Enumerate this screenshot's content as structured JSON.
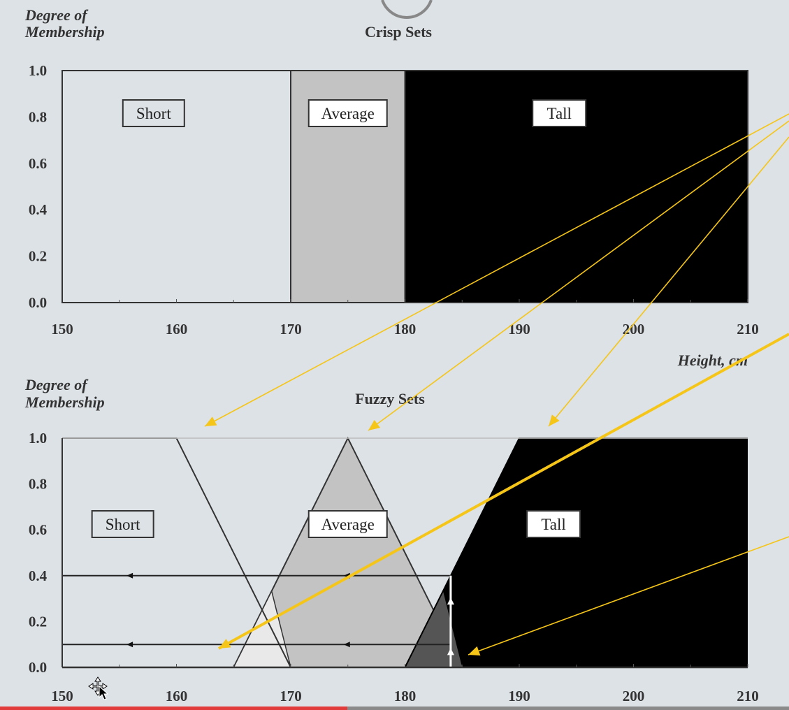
{
  "video": {
    "progress": 0.44
  },
  "colors": {
    "background": "#dde2e6",
    "short": "#dde2e6",
    "average": "#c3c3c3",
    "tall": "#000000",
    "overlap": "#e9e9e9",
    "overlap_dark": "#555555",
    "arrow": "#f5c518",
    "frame": "#333333"
  },
  "chart_data": [
    {
      "type": "area",
      "title": "Crisp Sets",
      "ylabel_line1": "Degree of",
      "ylabel_line2": "Membership",
      "xlabel": "Height, cm",
      "xlim": [
        150,
        210
      ],
      "ylim": [
        0,
        1
      ],
      "x_ticks": [
        "150",
        "160",
        "170",
        "180",
        "190",
        "200",
        "210"
      ],
      "y_ticks": [
        "0.0",
        "0.2",
        "0.4",
        "0.6",
        "0.8",
        "1.0"
      ],
      "series": [
        {
          "name": "Short",
          "points": [
            [
              150,
              1
            ],
            [
              170,
              1
            ]
          ]
        },
        {
          "name": "Average",
          "points": [
            [
              170,
              1
            ],
            [
              180,
              1
            ]
          ]
        },
        {
          "name": "Tall",
          "points": [
            [
              180,
              1
            ],
            [
              210,
              1
            ]
          ]
        }
      ]
    },
    {
      "type": "area",
      "title": "Fuzzy Sets",
      "ylabel_line1": "Degree of",
      "ylabel_line2": "Membership",
      "xlabel": "",
      "xlim": [
        150,
        210
      ],
      "ylim": [
        0,
        1
      ],
      "x_ticks": [
        "150",
        "160",
        "170",
        "180",
        "190",
        "200",
        "210"
      ],
      "y_ticks": [
        "0.0",
        "0.2",
        "0.4",
        "0.6",
        "0.8",
        "1.0"
      ],
      "series": [
        {
          "name": "Short",
          "points": [
            [
              150,
              1
            ],
            [
              160,
              1
            ],
            [
              170,
              0
            ]
          ]
        },
        {
          "name": "Average",
          "points": [
            [
              165,
              0
            ],
            [
              175,
              1
            ],
            [
              185,
              0
            ]
          ]
        },
        {
          "name": "Tall",
          "points": [
            [
              180,
              0
            ],
            [
              190,
              1
            ],
            [
              210,
              1
            ]
          ]
        }
      ],
      "annotations": {
        "marker_x": 184,
        "levels": [
          0.4,
          0.1
        ]
      }
    }
  ]
}
